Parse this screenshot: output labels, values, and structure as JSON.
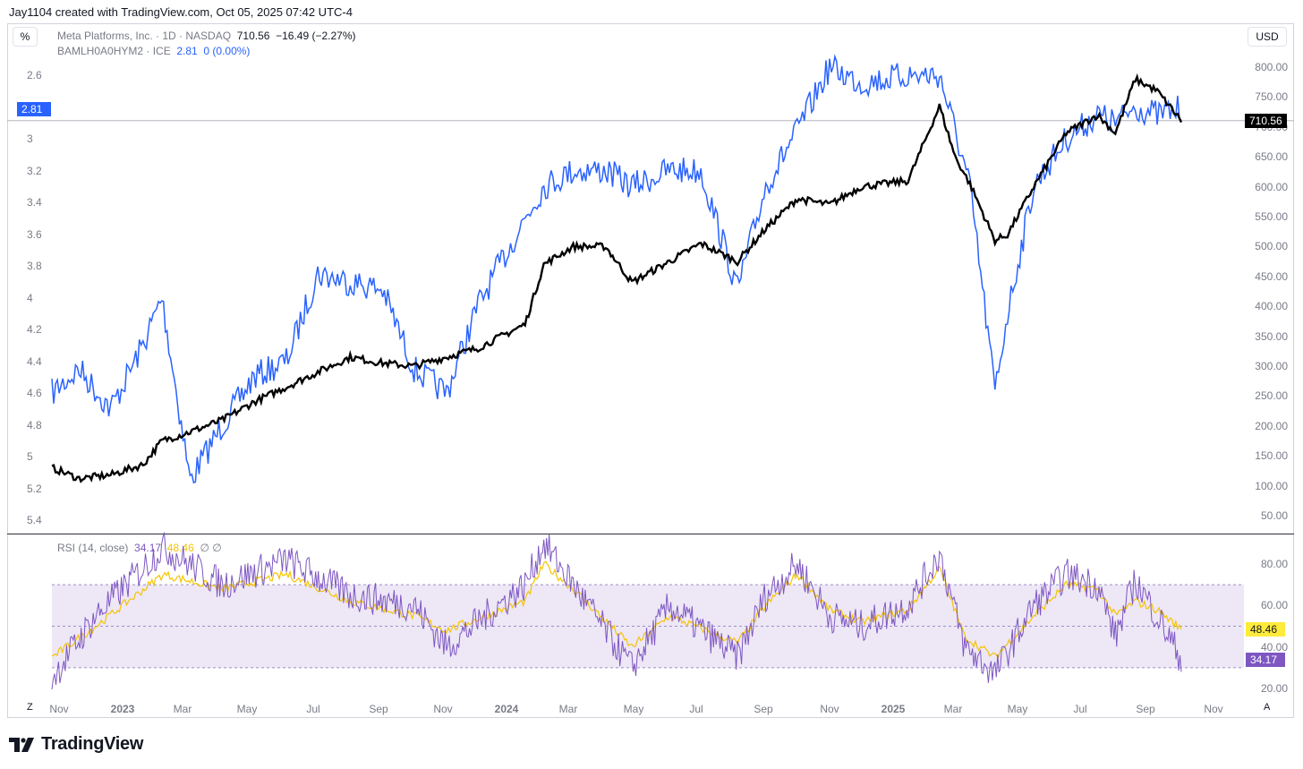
{
  "credit": "Jay1104 created with TradingView.com, Oct 05, 2025 07:42 UTC-4",
  "toolbar": {
    "percent_label": "%",
    "currency_label": "USD"
  },
  "legend": {
    "series1": {
      "name": "Meta Platforms, Inc. · 1D · NASDAQ",
      "price": "710.56",
      "change": "−16.49 (−2.27%)"
    },
    "series2": {
      "name": "BAMLH0A0HYM2 · ICE",
      "value": "2.81",
      "change": "0 (0.00%)"
    }
  },
  "rsi": {
    "name": "RSI (14, close)",
    "rsi_value": "34.17",
    "signal_value": "48.46",
    "extra": "∅ ∅"
  },
  "badges": {
    "left": "2.81",
    "price": "710.56",
    "signal": "48.46",
    "rsi": "34.17"
  },
  "left_axis_ticks": [
    "2.6",
    "2.81",
    "3",
    "3.2",
    "3.4",
    "3.6",
    "3.8",
    "4",
    "4.2",
    "4.4",
    "4.6",
    "4.8",
    "5",
    "5.2",
    "5.4"
  ],
  "right_axis_ticks": [
    "800.00",
    "750.00",
    "700.00",
    "650.00",
    "600.00",
    "550.00",
    "500.00",
    "450.00",
    "400.00",
    "350.00",
    "300.00",
    "250.00",
    "200.00",
    "150.00",
    "100.00",
    "50.00"
  ],
  "rsi_axis_ticks": [
    "80.00",
    "60.00",
    "40.00",
    "20.00"
  ],
  "x_axis_ticks": [
    {
      "label": "Nov",
      "bold": false
    },
    {
      "label": "2023",
      "bold": true
    },
    {
      "label": "Mar",
      "bold": false
    },
    {
      "label": "May",
      "bold": false
    },
    {
      "label": "Jul",
      "bold": false
    },
    {
      "label": "Sep",
      "bold": false
    },
    {
      "label": "Nov",
      "bold": false
    },
    {
      "label": "2024",
      "bold": true
    },
    {
      "label": "Mar",
      "bold": false
    },
    {
      "label": "May",
      "bold": false
    },
    {
      "label": "Jul",
      "bold": false
    },
    {
      "label": "Sep",
      "bold": false
    },
    {
      "label": "Nov",
      "bold": false
    },
    {
      "label": "2025",
      "bold": true
    },
    {
      "label": "Mar",
      "bold": false
    },
    {
      "label": "May",
      "bold": false
    },
    {
      "label": "Jul",
      "bold": false
    },
    {
      "label": "Sep",
      "bold": false
    },
    {
      "label": "Nov",
      "bold": false
    }
  ],
  "bottom_buttons": {
    "z": "Z",
    "a": "A"
  },
  "brand": "TradingView",
  "colors": {
    "meta": "#000000",
    "spread": "#2962ff",
    "rsi": "#7e57c2",
    "signal": "#f5c400",
    "rsi_band": "#ede7f6"
  },
  "chart_data": [
    {
      "type": "line",
      "x": [
        "2022-10-20",
        "2022-11-15",
        "2022-12-15",
        "2023-01-15",
        "2023-02-02",
        "2023-03-01",
        "2023-04-01",
        "2023-05-01",
        "2023-06-01",
        "2023-07-01",
        "2023-08-01",
        "2023-09-01",
        "2023-10-01",
        "2023-11-01",
        "2023-12-01",
        "2024-01-15",
        "2024-02-02",
        "2024-03-01",
        "2024-04-01",
        "2024-04-26",
        "2024-06-01",
        "2024-07-01",
        "2024-08-05",
        "2024-09-01",
        "2024-10-01",
        "2024-11-01",
        "2024-12-01",
        "2025-01-15",
        "2025-02-14",
        "2025-03-01",
        "2025-03-15",
        "2025-04-08",
        "2025-04-20",
        "2025-05-15",
        "2025-06-15",
        "2025-07-15",
        "2025-08-01",
        "2025-08-20",
        "2025-09-10",
        "2025-10-03"
      ],
      "series": [
        {
          "name": "Meta Platforms, Inc. · 1D · NASDAQ",
          "axis": "right",
          "values": [
            130,
            112,
            118,
            135,
            175,
            190,
            210,
            240,
            265,
            290,
            315,
            305,
            300,
            315,
            330,
            370,
            470,
            500,
            500,
            440,
            475,
            505,
            475,
            530,
            580,
            570,
            600,
            610,
            735,
            650,
            605,
            510,
            520,
            600,
            690,
            720,
            690,
            780,
            760,
            710.56
          ]
        },
        {
          "name": "BAMLH0A0HYM2 · ICE",
          "axis": "left",
          "inverted": true,
          "values": [
            4.6,
            4.45,
            4.7,
            4.3,
            4.0,
            5.15,
            4.8,
            4.5,
            4.4,
            3.85,
            3.9,
            3.95,
            4.45,
            4.6,
            4.05,
            3.5,
            3.3,
            3.2,
            3.2,
            3.3,
            3.2,
            3.2,
            3.95,
            3.3,
            2.95,
            2.55,
            2.65,
            2.6,
            2.6,
            2.95,
            3.3,
            4.59,
            4.1,
            3.3,
            3.0,
            2.85,
            2.9,
            2.8,
            2.85,
            2.81
          ]
        }
      ],
      "ylim_right": [
        50,
        800
      ],
      "ylim_left": [
        2.6,
        5.4
      ]
    },
    {
      "type": "line",
      "title": "RSI (14, close)",
      "x": [
        "2022-10-20",
        "2022-12-01",
        "2023-02-03",
        "2023-04-01",
        "2023-06-01",
        "2023-08-01",
        "2023-10-01",
        "2023-11-01",
        "2024-01-15",
        "2024-02-02",
        "2024-03-01",
        "2024-04-26",
        "2024-06-01",
        "2024-08-05",
        "2024-09-01",
        "2024-10-01",
        "2024-11-01",
        "2024-12-01",
        "2025-01-15",
        "2025-02-14",
        "2025-03-10",
        "2025-04-08",
        "2025-05-15",
        "2025-06-15",
        "2025-07-15",
        "2025-08-01",
        "2025-08-20",
        "2025-09-10",
        "2025-10-03"
      ],
      "series": [
        {
          "name": "RSI",
          "values": [
            25,
            55,
            88,
            70,
            82,
            65,
            60,
            40,
            70,
            90,
            70,
            30,
            60,
            35,
            65,
            80,
            55,
            50,
            60,
            85,
            40,
            27,
            60,
            75,
            70,
            45,
            72,
            55,
            34.17
          ]
        },
        {
          "name": "Signal",
          "values": [
            35,
            50,
            75,
            68,
            75,
            62,
            55,
            48,
            62,
            80,
            68,
            40,
            55,
            42,
            60,
            75,
            58,
            52,
            58,
            78,
            45,
            35,
            55,
            70,
            68,
            55,
            62,
            58,
            48.46
          ]
        }
      ],
      "ylim": [
        15,
        92
      ],
      "bands": [
        30,
        50,
        70
      ]
    }
  ]
}
